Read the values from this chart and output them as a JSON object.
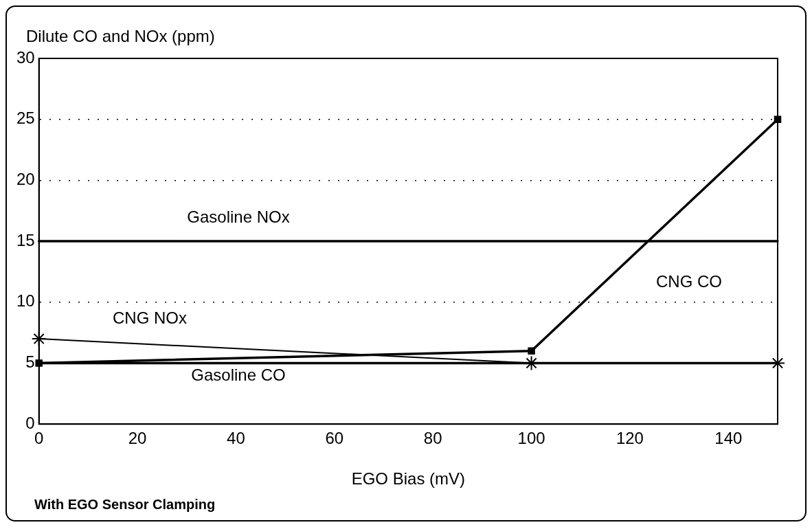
{
  "chart_data": {
    "type": "line",
    "ylabel": "Dilute CO and NOx (ppm)",
    "xlabel": "EGO Bias (mV)",
    "annotations": [
      "With EGO Sensor Clamping"
    ],
    "x": [
      0,
      100,
      150
    ],
    "xlim": [
      0,
      150
    ],
    "xticks": [
      0,
      20,
      40,
      60,
      80,
      100,
      120,
      140
    ],
    "ylim": [
      0,
      30
    ],
    "yticks": [
      0,
      5,
      10,
      15,
      20,
      25,
      30
    ],
    "grid": "y",
    "legend": false,
    "line_style": "solid",
    "series": [
      {
        "name": "Gasoline NOx",
        "color": "#000000",
        "marker": "none",
        "values": [
          15,
          15,
          15
        ]
      },
      {
        "name": "CNG NOx",
        "color": "#000000",
        "marker": "cross",
        "values": [
          7,
          5,
          5
        ]
      },
      {
        "name": "Gasoline CO",
        "color": "#000000",
        "marker": "none",
        "values": [
          5,
          5,
          5
        ]
      },
      {
        "name": "CNG CO",
        "color": "#000000",
        "marker": "square",
        "values": [
          5,
          6,
          25
        ]
      }
    ]
  }
}
